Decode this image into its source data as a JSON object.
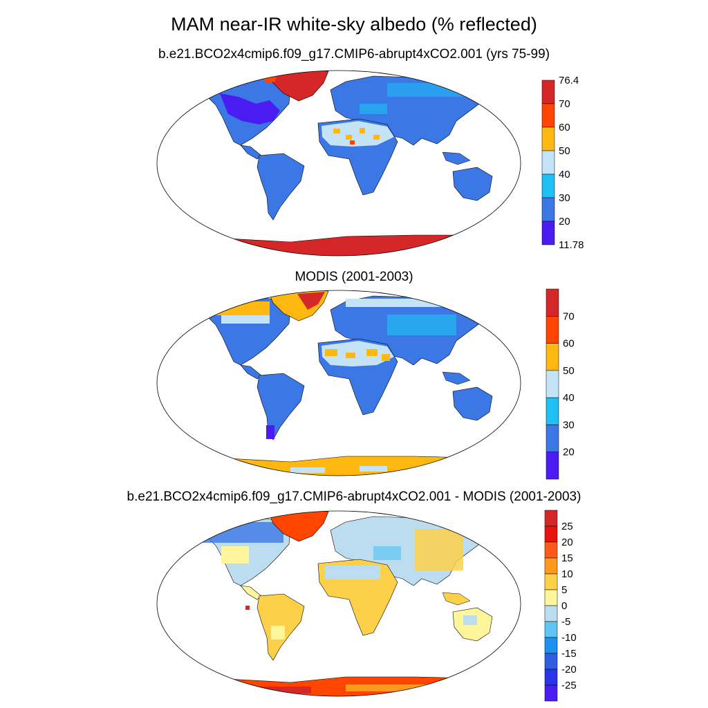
{
  "title": "MAM near-IR white-sky albedo (% reflected)",
  "panels": [
    {
      "subtitle": "b.e21.BCO2x4cmip6.f09_g17.CMIP6-abrupt4xCO2.001 (yrs 75-99)",
      "colorbar": {
        "labels": [
          "76.4",
          "70",
          "60",
          "50",
          "40",
          "30",
          "20",
          "11.78"
        ],
        "colors": [
          "#d62728",
          "#ff4500",
          "#ffb810",
          "#c5e3f6",
          "#1ec0f5",
          "#3b78e6",
          "#4a1cf2"
        ]
      }
    },
    {
      "subtitle": "MODIS (2001-2003)",
      "colorbar": {
        "labels": [
          "70",
          "60",
          "50",
          "40",
          "30",
          "20"
        ],
        "colors": [
          "#d62728",
          "#ff4500",
          "#ffb810",
          "#c5e3f6",
          "#1ec0f5",
          "#3b78e6",
          "#4a1cf2"
        ]
      }
    },
    {
      "subtitle": "b.e21.BCO2x4cmip6.f09_g17.CMIP6-abrupt4xCO2.001 - MODIS (2001-2003)",
      "colorbar": {
        "labels": [
          "25",
          "20",
          "15",
          "10",
          "5",
          "0",
          "-5",
          "-10",
          "-15",
          "-20",
          "-25"
        ],
        "colors": [
          "#d62728",
          "#e8130f",
          "#ff5a1a",
          "#fb9a1d",
          "#fdd049",
          "#fff59a",
          "#bcdcf0",
          "#5ec4f2",
          "#1e90f0",
          "#2f5ee0",
          "#2a34e8",
          "#4a1cf2"
        ]
      }
    }
  ],
  "palette": {
    "land_low": "#3b78e6",
    "land_mid": "#1ec0f5",
    "desert": "#c5e3f6",
    "ice_high": "#d62728",
    "orange": "#ffb810",
    "pos_small": "#fff59a",
    "pos_med": "#fdd049",
    "neg_small": "#bcdcf0",
    "outline": "#000000"
  }
}
